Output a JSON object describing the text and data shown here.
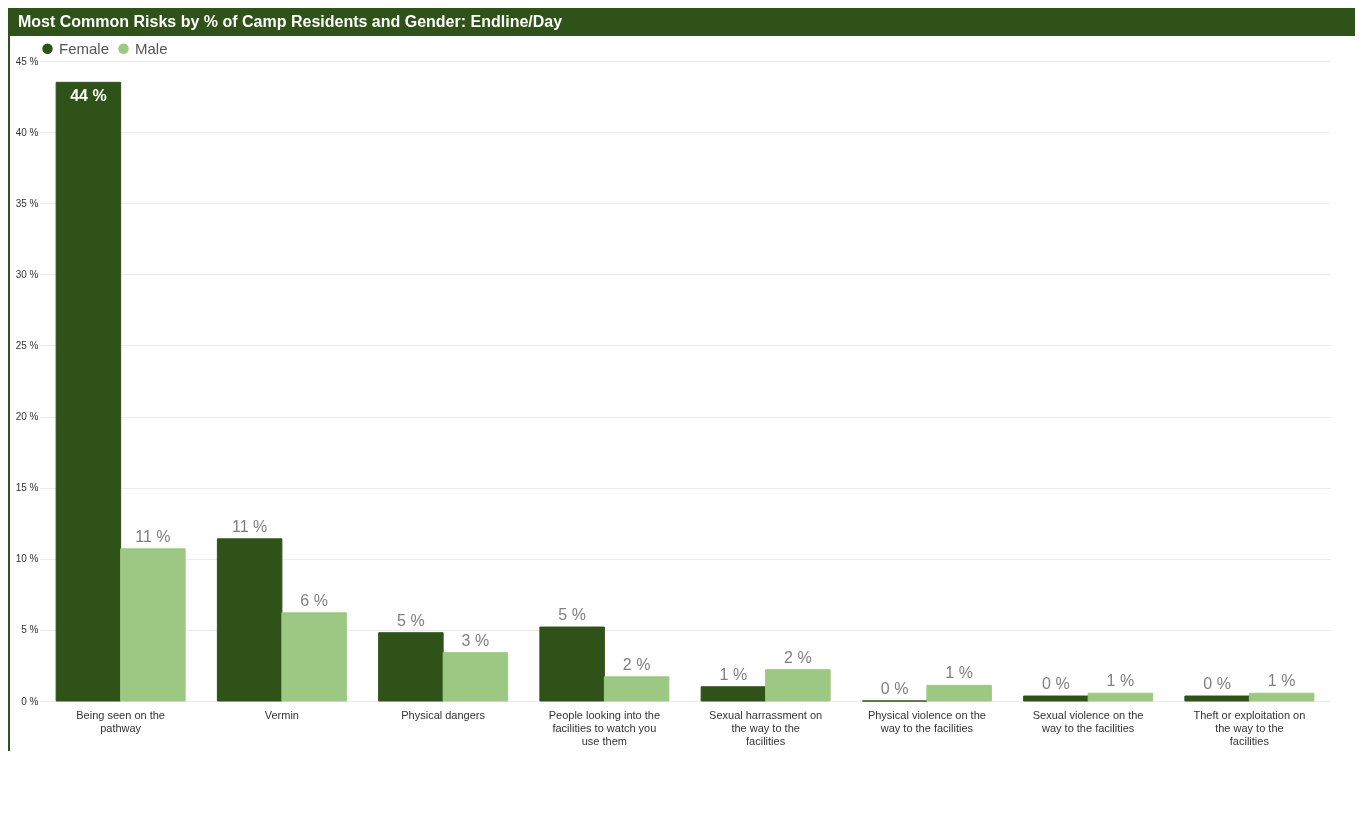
{
  "chart_data": {
    "type": "bar",
    "title": "Most Common Risks by % of Camp Residents and Gender: Endline/Day",
    "categories": [
      "Being seen on the pathway",
      "Vermin",
      "Physical dangers",
      "People looking into the facilities to watch you use them",
      "Sexual harrassment on the way to the facilities",
      "Physical violence on the way to the facilities",
      "Sexual violence on the way to the facilities",
      "Theft or exploitation on the way to the facilities"
    ],
    "series": [
      {
        "name": "Female",
        "color": "#2f5219",
        "values": [
          43.5,
          11.4,
          4.8,
          5.2,
          1.0,
          0,
          0.35,
          0.35
        ],
        "value_labels": [
          "44 %",
          "11 %",
          "5 %",
          "5 %",
          "1 %",
          "0 %",
          "0 %",
          "0 %"
        ]
      },
      {
        "name": "Male",
        "color": "#9dc883",
        "values": [
          10.7,
          6.2,
          3.4,
          1.7,
          2.2,
          1.1,
          0.55,
          0.55
        ],
        "value_labels": [
          "11 %",
          "6 %",
          "3 %",
          "2 %",
          "2 %",
          "1 %",
          "1 %",
          "1 %"
        ]
      }
    ],
    "ylim": [
      0,
      45
    ],
    "yticks": [
      {
        "value": 0,
        "label": "0 %"
      },
      {
        "value": 5,
        "label": "5 %"
      },
      {
        "value": 10,
        "label": "10 %"
      },
      {
        "value": 15,
        "label": "15 %"
      },
      {
        "value": 20,
        "label": "20 %"
      },
      {
        "value": 25,
        "label": "25 %"
      },
      {
        "value": 30,
        "label": "30 %"
      },
      {
        "value": 35,
        "label": "35 %"
      },
      {
        "value": 40,
        "label": "40 %"
      },
      {
        "value": 45,
        "label": "45 %"
      }
    ],
    "grid": "y",
    "legend": "top left"
  }
}
